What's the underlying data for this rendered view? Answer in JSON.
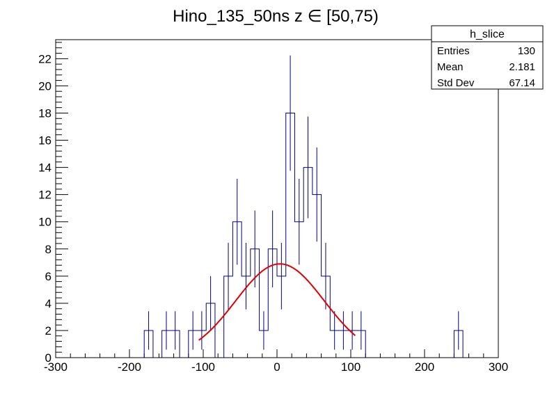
{
  "chart_data": {
    "type": "histogram",
    "title": "Hino_135_50ns z  ∈ [50,75)",
    "xlabel": "",
    "ylabel": "",
    "xlim": [
      -300,
      300
    ],
    "ylim": [
      0,
      23.4
    ],
    "x_ticks": [
      -300,
      -200,
      -100,
      0,
      100,
      200,
      300
    ],
    "y_ticks": [
      0,
      2,
      4,
      6,
      8,
      10,
      12,
      14,
      16,
      18,
      20,
      22
    ],
    "bin_width": 12,
    "bin_edges_start": -300,
    "bins": [
      {
        "x": -174,
        "count": 2
      },
      {
        "x": -150,
        "count": 2
      },
      {
        "x": -138,
        "count": 2
      },
      {
        "x": -114,
        "count": 2
      },
      {
        "x": -102,
        "count": 2
      },
      {
        "x": -90,
        "count": 4
      },
      {
        "x": -66,
        "count": 6
      },
      {
        "x": -54,
        "count": 10
      },
      {
        "x": -42,
        "count": 6
      },
      {
        "x": -30,
        "count": 8
      },
      {
        "x": -18,
        "count": 2
      },
      {
        "x": -6,
        "count": 8
      },
      {
        "x": 6,
        "count": 6
      },
      {
        "x": 18,
        "count": 18
      },
      {
        "x": 30,
        "count": 10
      },
      {
        "x": 42,
        "count": 14
      },
      {
        "x": 54,
        "count": 12
      },
      {
        "x": 66,
        "count": 6
      },
      {
        "x": 78,
        "count": 2
      },
      {
        "x": 90,
        "count": 2
      },
      {
        "x": 102,
        "count": 2
      },
      {
        "x": 114,
        "count": 2
      },
      {
        "x": 246,
        "count": 2
      }
    ],
    "fit": {
      "function": "gaus",
      "amplitude": 6.9,
      "mean": 4,
      "sigma": 60,
      "range": [
        -106,
        106
      ],
      "color": "#e00000"
    },
    "histogram_color": "#000080",
    "stats_box": {
      "name": "h_slice",
      "rows": [
        {
          "label": "Entries",
          "value": "130"
        },
        {
          "label": "Mean",
          "value": "2.181"
        },
        {
          "label": "Std Dev",
          "value": "67.14"
        }
      ]
    }
  }
}
